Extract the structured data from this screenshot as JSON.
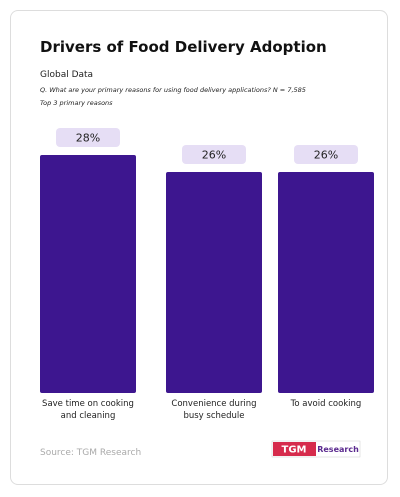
{
  "chart_data": {
    "type": "bar",
    "title": "Drivers of Food Delivery Adoption",
    "subtitle": "Global Data",
    "question": "Q. What are your primary reasons for using food delivery applications? N = 7,585",
    "note": "Top 3 primary reasons",
    "categories": [
      "Save time on cooking and cleaning",
      "Convenience during busy schedule",
      "To avoid cooking"
    ],
    "values": [
      28,
      26,
      26
    ],
    "value_labels": [
      "28%",
      "26%",
      "26%"
    ],
    "color": "#3d168f",
    "source": "Source: TGM Research",
    "logo": {
      "mark": "TGM",
      "text": "Research"
    }
  }
}
